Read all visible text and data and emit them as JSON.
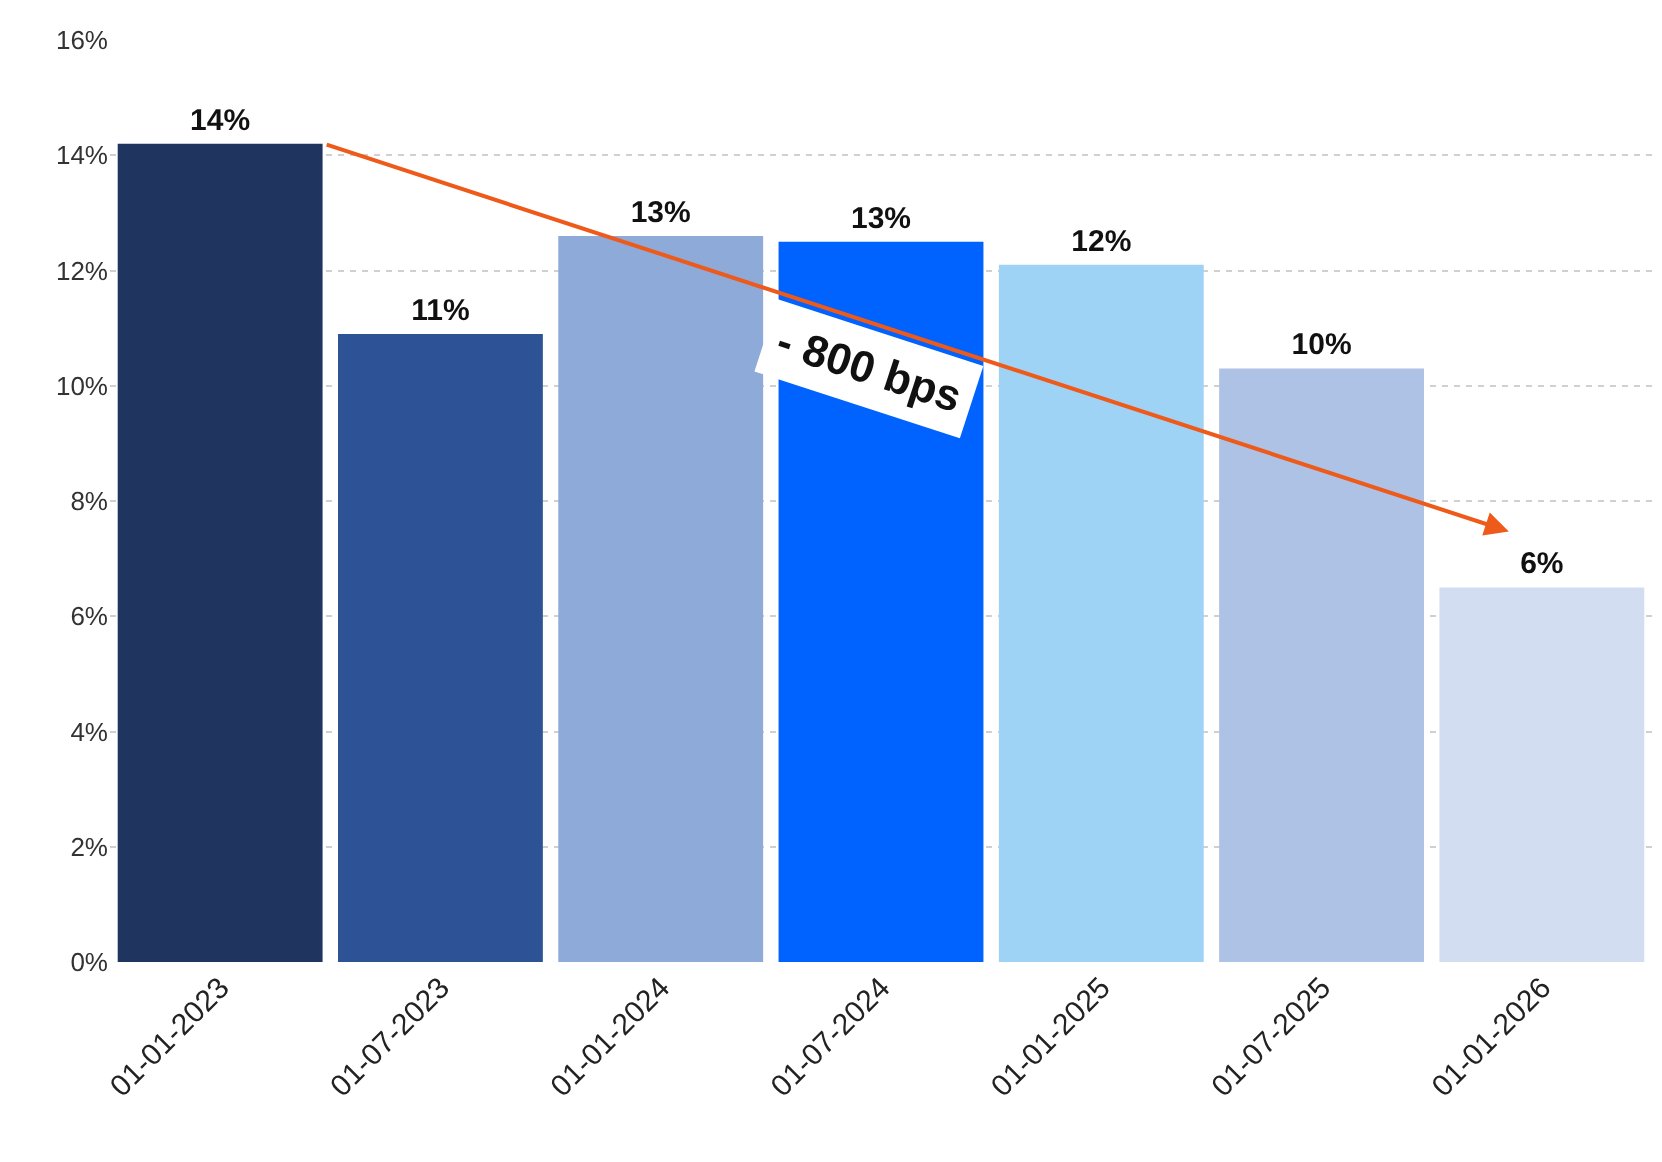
{
  "chart_data": {
    "type": "bar",
    "categories": [
      "01-01-2023",
      "01-07-2023",
      "01-01-2024",
      "01-07-2024",
      "01-01-2025",
      "01-07-2025",
      "01-01-2026"
    ],
    "values": [
      14.2,
      10.9,
      12.6,
      12.5,
      12.1,
      10.3,
      6.5
    ],
    "value_labels": [
      "14%",
      "11%",
      "13%",
      "13%",
      "12%",
      "10%",
      "6%"
    ],
    "colors": [
      "#1f3560",
      "#2d5396",
      "#8eaad9",
      "#0062ff",
      "#9fd3f5",
      "#adc2e4",
      "#d3ddf1"
    ],
    "ylim": [
      0,
      16
    ],
    "yticks": [
      {
        "value": 0,
        "label": "0%"
      },
      {
        "value": 2,
        "label": "2%"
      },
      {
        "value": 4,
        "label": "4%"
      },
      {
        "value": 6,
        "label": "6%"
      },
      {
        "value": 8,
        "label": "8%"
      },
      {
        "value": 10,
        "label": "10%"
      },
      {
        "value": 12,
        "label": "12%"
      },
      {
        "value": 14,
        "label": "14%"
      },
      {
        "value": 16,
        "label": "16%"
      }
    ],
    "grid": "y",
    "legend": false,
    "annotations": [
      "- 800 bps"
    ]
  }
}
